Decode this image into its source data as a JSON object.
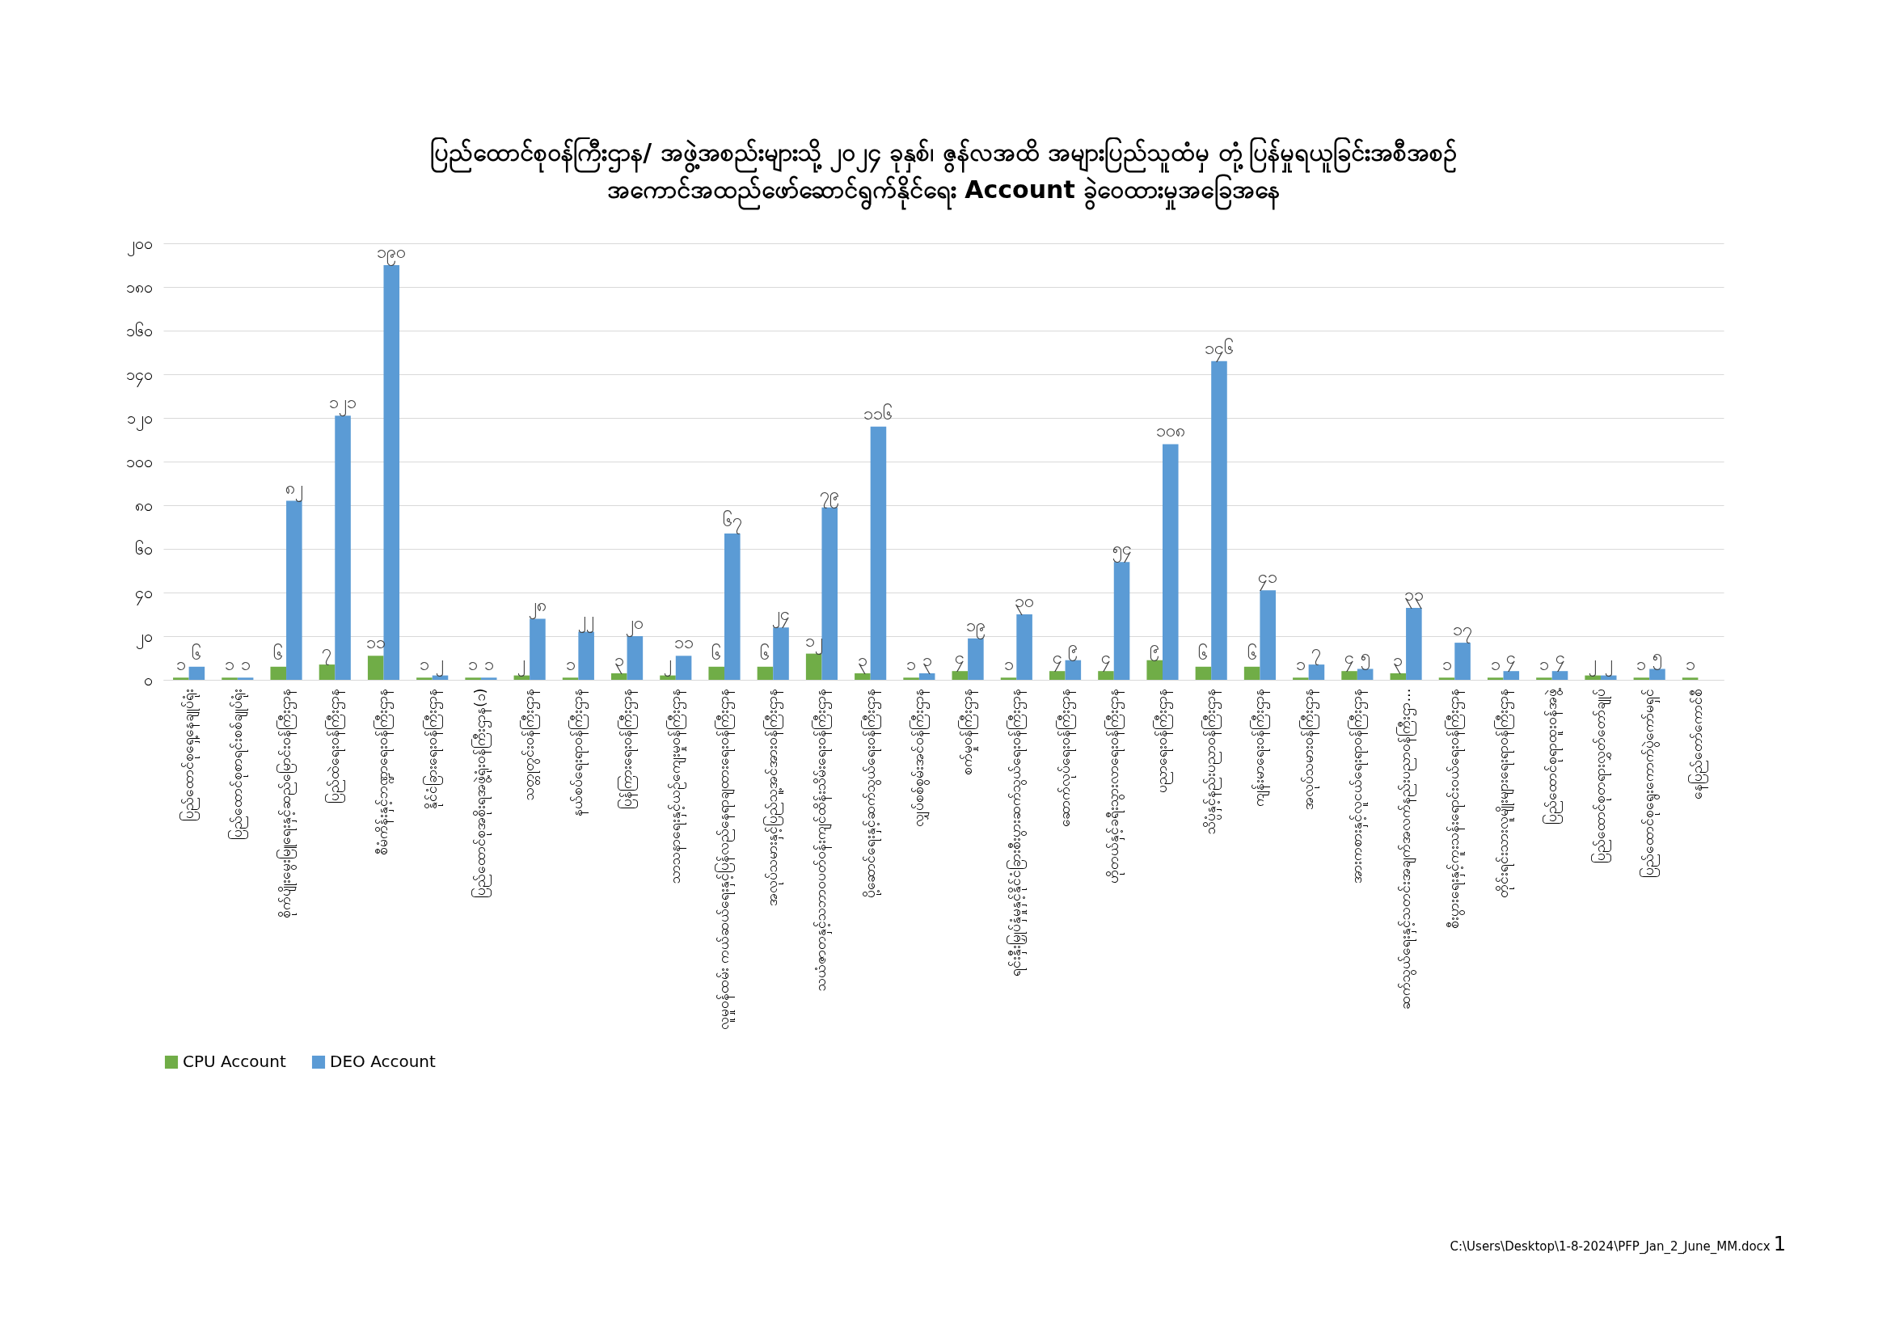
{
  "chart_data": {
    "type": "bar",
    "title": "ပြည်ထောင်စုဝန်ကြီးဌာန/ အဖွဲ့အစည်းများသို့ ၂၀၂၄ ခုနှစ်၊ ဇွန်လအထိ အများပြည်သူထံမှ တုံ့ပြန်မှုရယူခြင်းအစီအစဉ်\nအကောင်အထည်ဖော်ဆောင်ရွက်နိုင်ရေး Account ခွဲဝေထားမှုအခြေအနေ",
    "categories": [
      "ပြည်ထောင်စုရှေ့နေချုပ်ရုံး",
      "ပြည်ထောင်စုစာရင်းစစ်ချုပ်ရုံး",
      "စိုက်ပျိုးမွေးမြူရေးနှင့်ဆည်မြောင်းဝန်ကြီးဌာန",
      "ပြည်ထဲရေးဝန်ကြီးဌာန",
      "စီမံကိန်းနှင့်ဘဏ္ဍာရေးဝန်ကြီးဌာန",
      "နိုင်ငံခြားရေးဝန်ကြီးဌာန",
      "ပြည်ထောင်စုအစိုးရအဖွဲ့ရုံးဝန်ကြီးဌာန(၁)",
      "သတ္တုတွင်းဝန်ကြီးဌာန",
      "နယ်စပ်ရေးရာဝန်ကြီးဌာန",
      "ပြန်ကြားရေးဝန်ကြီးဌာန",
      "သာသနာရေးနှင့်ယဉ်ကျေးမှုဝန်ကြီးဌာန",
      "လူမှုဝန်ထမ်း ကယ်ဆယ်ရေးနှင့်ပြန်လည်နေရာချထားရေးဝန်ကြီးဌာန",
      "အလုပ်သမားနှင့်ပြည်သူ့အင်အားဝန်ကြီးဌာန",
      "သယံဇာတနှင့်သဘာဝပတ်ဝန်းကျင်ထိန်းသိမ်းရေးဝန်ကြီးဌာန",
      "ပို့ဆောင်ရေးနှင့်ဆက်သွယ်ရေးဝန်ကြီးဌာန",
      "လျှပ်စစ်စွမ်းအင်ဝန်ကြီးဌာန",
      "စက်မှုဝန်ကြီးဌာန",
      "ရင်းနှီးမြှုပ်နှံမှုနှင့်နိုင်ငံခြားစီးပွားဆက်သွယ်ရေးဝန်ကြီးဌာန",
      "ဆောက်လုပ်ရေးဝန်ကြီးဌာန",
      "ဟိုတယ်နှင့်ခရီးသွားလာရေးဝန်ကြီးဌာန",
      "ပညာရေးဝန်ကြီးဌာန",
      "သိပ္ပံနှင့်နည်းပညာဝန်ကြီးဌာန",
      "ကျန်းမာရေးဝန်ကြီးဌာန",
      "အလုပ်သမားဝန်ကြီးဌာန",
      "အားကစားနှင့်လူငယ်ရေးရာဝန်ကြီးဌာန",
      "ဆက်သွယ်ရေးနှင့်သတင်းအချက်အလက်နည်းပညာဝန်ကြီးဌာ…",
      "စီးပွားရေးနှင့်ကူးသန်းရောင်းဝယ်ရေးဝန်ကြီးဌာန",
      "တိုင်းရင်းသားလူမျိုးများရေးရာဝန်ကြီးဌာန",
      "ပြည်ထောင်စုရာထူးဝန်အဖွဲ့",
      "ပြည်ထောင်စုတရားလွှတ်တော်ချုပ်",
      "ပြည်ထောင်စုရွေးကောက်ပွဲကော်မရှင်",
      "နေပြည်တော်ကောင်စီ"
    ],
    "series": [
      {
        "name": "CPU Account",
        "color": "#70ad47",
        "values": [
          1,
          1,
          6,
          7,
          11,
          1,
          1,
          2,
          1,
          3,
          2,
          6,
          6,
          12,
          3,
          1,
          4,
          1,
          4,
          4,
          9,
          6,
          6,
          1,
          4,
          3,
          1,
          1,
          1,
          2,
          1,
          1
        ],
        "value_labels": [
          "၁",
          "၁",
          "၆",
          "၇",
          "၁၁",
          "၁",
          "၁",
          "၂",
          "၁",
          "၃",
          "၂",
          "၆",
          "၆",
          "၁၂",
          "၃",
          "၁",
          "၄",
          "၁",
          "၄",
          "၄",
          "၉",
          "၆",
          "၆",
          "၁",
          "၄",
          "၃",
          "၁",
          "၁",
          "၁",
          "၂",
          "၁",
          "၁"
        ]
      },
      {
        "name": "DEO Account",
        "color": "#5b9bd5",
        "values": [
          6,
          1,
          82,
          121,
          190,
          2,
          1,
          28,
          22,
          20,
          11,
          67,
          24,
          79,
          116,
          3,
          19,
          30,
          9,
          54,
          108,
          146,
          41,
          7,
          5,
          33,
          17,
          4,
          4,
          2,
          5,
          null
        ],
        "value_labels": [
          "၆",
          "၁",
          "၈၂",
          "၁၂၁",
          "၁၉၀",
          "၂",
          "၁",
          "၂၈",
          "၂၂",
          "၂၀",
          "၁၁",
          "၆၇",
          "၂၄",
          "၇၉",
          "၁၁၆",
          "၃",
          "၁၉",
          "၃၀",
          "၉",
          "၅၄",
          "၁၀၈",
          "၁၄၆",
          "၄၁",
          "၇",
          "၅",
          "၃၃",
          "၁၇",
          "၄",
          "၄",
          "၂",
          "၅",
          null
        ]
      }
    ],
    "ylim": [
      0,
      200
    ],
    "yticks": [
      {
        "value": 0,
        "label": "၀"
      },
      {
        "value": 20,
        "label": "၂၀"
      },
      {
        "value": 40,
        "label": "၄၀"
      },
      {
        "value": 60,
        "label": "၆၀"
      },
      {
        "value": 80,
        "label": "၈၀"
      },
      {
        "value": 100,
        "label": "၁၀၀"
      },
      {
        "value": 120,
        "label": "၁၂၀"
      },
      {
        "value": 140,
        "label": "၁၄၀"
      },
      {
        "value": 160,
        "label": "၁၆၀"
      },
      {
        "value": 180,
        "label": "၁၈၀"
      },
      {
        "value": 200,
        "label": "၂၀၀"
      }
    ],
    "grid": "y",
    "legend": "bottom",
    "annotations": [
      "C:\\Users\\Desktop\\1-8-2024\\PFP_Jan_2_June_MM.docx",
      "1"
    ]
  }
}
